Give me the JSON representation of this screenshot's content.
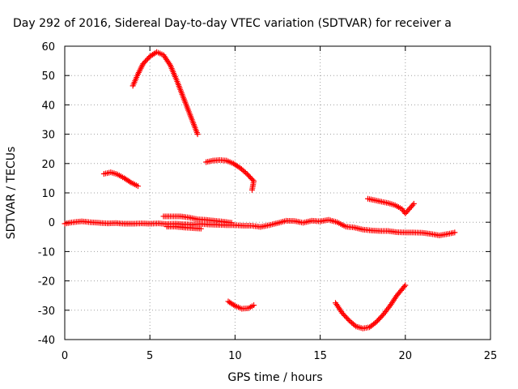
{
  "chart_data": {
    "type": "scatter",
    "title": "Day 292 of 2016, Sidereal Day-to-day VTEC variation (SDTVAR) for receiver a",
    "xlabel": "GPS time / hours",
    "ylabel": "SDTVAR / TECUs",
    "xlim": [
      0,
      25
    ],
    "ylim": [
      -40,
      60
    ],
    "xticks": [
      "0",
      "5",
      "10",
      "15",
      "20",
      "25"
    ],
    "yticks": [
      "-40",
      "-30",
      "-20",
      "-10",
      "0",
      "10",
      "20",
      "30",
      "40",
      "50",
      "60"
    ],
    "grid": true,
    "marker": "+",
    "color": "#ff0000",
    "series": [
      {
        "values": [
          [
            0.0,
            -0.5
          ],
          [
            0.5,
            0.0
          ],
          [
            1.0,
            0.3
          ],
          [
            1.5,
            0.0
          ],
          [
            2.0,
            -0.2
          ],
          [
            2.5,
            -0.4
          ],
          [
            3.0,
            -0.3
          ],
          [
            3.5,
            -0.5
          ],
          [
            4.0,
            -0.5
          ],
          [
            4.5,
            -0.4
          ],
          [
            5.0,
            -0.5
          ],
          [
            5.5,
            -0.4
          ],
          [
            6.0,
            -0.6
          ],
          [
            6.5,
            -0.5
          ],
          [
            7.0,
            -0.7
          ],
          [
            7.5,
            -0.8
          ],
          [
            8.0,
            -0.6
          ],
          [
            8.5,
            -0.8
          ],
          [
            9.0,
            -0.9
          ],
          [
            9.5,
            -1.0
          ],
          [
            10.0,
            -1.0
          ],
          [
            10.5,
            -1.2
          ],
          [
            11.0,
            -1.2
          ],
          [
            11.5,
            -1.6
          ],
          [
            12.0,
            -1.0
          ],
          [
            12.5,
            -0.3
          ],
          [
            13.0,
            0.5
          ],
          [
            13.5,
            0.4
          ],
          [
            14.0,
            -0.2
          ],
          [
            14.5,
            0.5
          ],
          [
            15.0,
            0.3
          ],
          [
            15.5,
            0.8
          ],
          [
            16.0,
            0.0
          ],
          [
            16.5,
            -1.5
          ],
          [
            17.0,
            -1.8
          ],
          [
            17.5,
            -2.5
          ],
          [
            18.0,
            -2.8
          ],
          [
            18.5,
            -3.0
          ],
          [
            19.0,
            -3.0
          ],
          [
            19.5,
            -3.4
          ],
          [
            20.0,
            -3.5
          ],
          [
            20.5,
            -3.5
          ],
          [
            21.0,
            -3.6
          ],
          [
            21.5,
            -4.0
          ],
          [
            22.0,
            -4.5
          ],
          [
            22.5,
            -4.0
          ],
          [
            22.9,
            -3.5
          ],
          [
            5.8,
            2.0
          ],
          [
            6.3,
            2.0
          ],
          [
            6.8,
            2.0
          ],
          [
            7.3,
            1.6
          ],
          [
            7.8,
            1.0
          ],
          [
            8.3,
            0.8
          ],
          [
            8.8,
            0.5
          ],
          [
            9.3,
            0.2
          ],
          [
            9.8,
            -0.2
          ],
          [
            6.0,
            -1.5
          ],
          [
            6.5,
            -1.5
          ],
          [
            7.0,
            -1.8
          ],
          [
            7.5,
            -2.0
          ],
          [
            8.0,
            -2.2
          ]
        ]
      },
      {
        "values": [
          [
            4.0,
            46.5
          ],
          [
            4.3,
            50.5
          ],
          [
            4.6,
            54.0
          ],
          [
            5.0,
            56.5
          ],
          [
            5.4,
            58.0
          ],
          [
            5.8,
            57.0
          ],
          [
            6.2,
            53.5
          ],
          [
            6.6,
            48.0
          ],
          [
            7.0,
            42.0
          ],
          [
            7.4,
            36.0
          ],
          [
            7.8,
            30.0
          ]
        ]
      },
      {
        "values": [
          [
            2.3,
            16.5
          ],
          [
            2.7,
            17.0
          ],
          [
            3.1,
            16.3
          ],
          [
            3.5,
            15.0
          ],
          [
            3.9,
            13.5
          ],
          [
            4.3,
            12.3
          ]
        ]
      },
      {
        "values": [
          [
            8.3,
            20.5
          ],
          [
            8.7,
            21.0
          ],
          [
            9.1,
            21.2
          ],
          [
            9.5,
            21.0
          ],
          [
            9.9,
            20.0
          ],
          [
            10.3,
            18.5
          ],
          [
            10.7,
            16.5
          ],
          [
            11.1,
            14.0
          ],
          [
            11.0,
            11.0
          ]
        ]
      },
      {
        "values": [
          [
            9.6,
            -27.0
          ],
          [
            10.0,
            -28.5
          ],
          [
            10.4,
            -29.5
          ],
          [
            10.8,
            -29.3
          ],
          [
            11.1,
            -28.3
          ]
        ]
      },
      {
        "values": [
          [
            15.9,
            -27.5
          ],
          [
            16.3,
            -31.0
          ],
          [
            16.7,
            -33.5
          ],
          [
            17.1,
            -35.5
          ],
          [
            17.5,
            -36.2
          ],
          [
            17.9,
            -35.8
          ],
          [
            18.3,
            -34.0
          ],
          [
            18.7,
            -31.5
          ],
          [
            19.1,
            -28.5
          ],
          [
            19.5,
            -25.0
          ],
          [
            20.0,
            -21.5
          ]
        ]
      },
      {
        "values": [
          [
            17.8,
            8.0
          ],
          [
            18.2,
            7.5
          ],
          [
            18.6,
            7.0
          ],
          [
            19.0,
            6.5
          ],
          [
            19.4,
            5.8
          ],
          [
            19.8,
            4.5
          ],
          [
            20.0,
            3.0
          ],
          [
            20.5,
            6.3
          ]
        ]
      }
    ]
  }
}
